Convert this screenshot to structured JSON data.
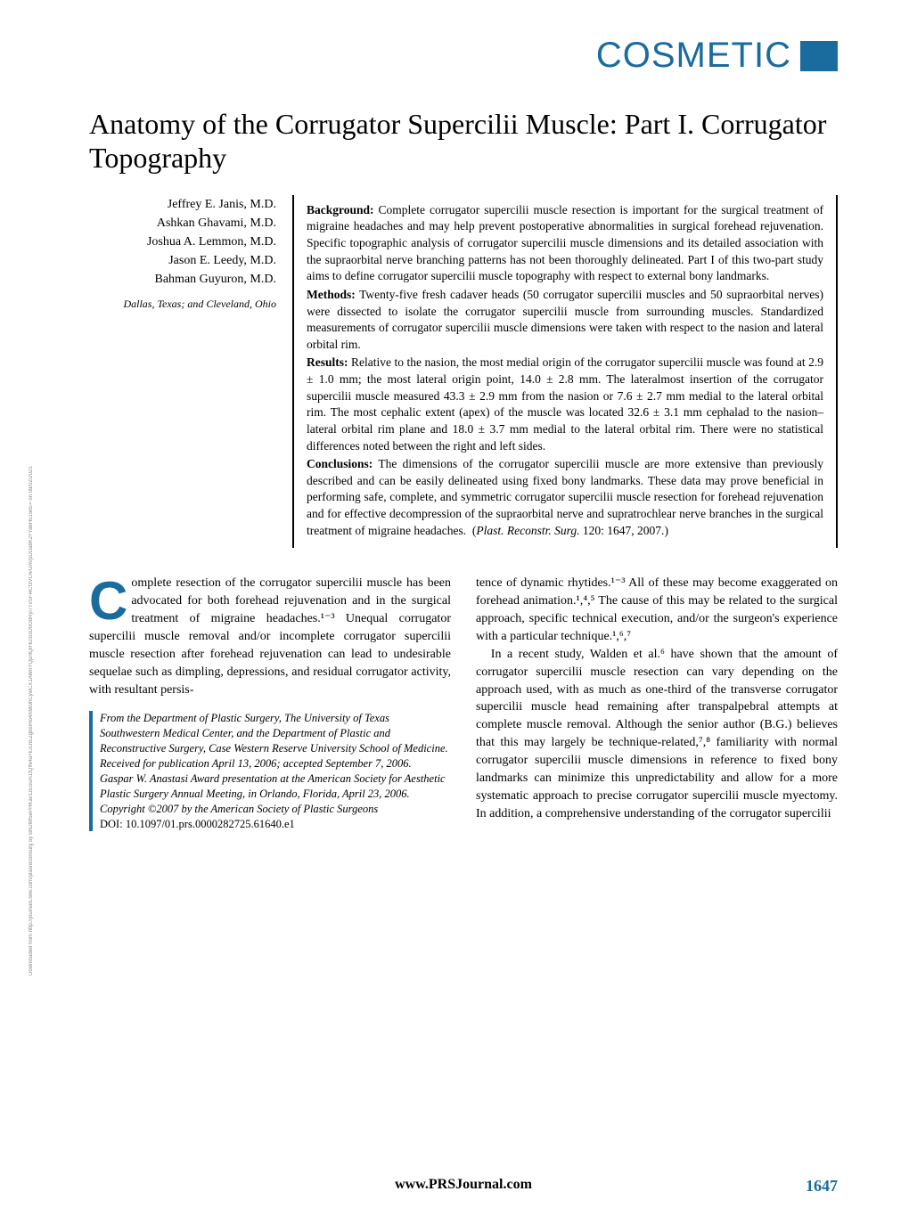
{
  "header": {
    "section_label": "COSMETIC",
    "label_color": "#1a6b9e"
  },
  "article": {
    "title": "Anatomy of the Corrugator Supercilii Muscle: Part I. Corrugator Topography",
    "authors": [
      "Jeffrey E. Janis, M.D.",
      "Ashkan Ghavami, M.D.",
      "Joshua A. Lemmon, M.D.",
      "Jason E. Leedy, M.D.",
      "Bahman Guyuron, M.D."
    ],
    "affiliation": "Dallas, Texas; and Cleveland, Ohio"
  },
  "abstract": {
    "background_label": "Background:",
    "background": "Complete corrugator supercilii muscle resection is important for the surgical treatment of migraine headaches and may help prevent postoperative abnormalities in surgical forehead rejuvenation. Specific topographic analysis of corrugator supercilii muscle dimensions and its detailed association with the supraorbital nerve branching patterns has not been thoroughly delineated. Part I of this two-part study aims to define corrugator supercilii muscle topography with respect to external bony landmarks.",
    "methods_label": "Methods:",
    "methods": "Twenty-five fresh cadaver heads (50 corrugator supercilii muscles and 50 supraorbital nerves) were dissected to isolate the corrugator supercilii muscle from surrounding muscles. Standardized measurements of corrugator supercilii muscle dimensions were taken with respect to the nasion and lateral orbital rim.",
    "results_label": "Results:",
    "results": "Relative to the nasion, the most medial origin of the corrugator supercilii muscle was found at 2.9 ± 1.0 mm; the most lateral origin point, 14.0 ± 2.8 mm. The lateralmost insertion of the corrugator supercilii muscle measured 43.3 ± 2.9 mm from the nasion or 7.6 ± 2.7 mm medial to the lateral orbital rim. The most cephalic extent (apex) of the muscle was located 32.6 ± 3.1 mm cephalad to the nasion–lateral orbital rim plane and 18.0 ± 3.7 mm medial to the lateral orbital rim. There were no statistical differences noted between the right and left sides.",
    "conclusions_label": "Conclusions:",
    "conclusions": "The dimensions of the corrugator supercilii muscle are more extensive than previously described and can be easily delineated using fixed bony landmarks. These data may prove beneficial in performing safe, complete, and symmetric corrugator supercilii muscle resection for forehead rejuvenation and for effective decompression of the supraorbital nerve and supratrochlear nerve branches in the surgical treatment of migraine headaches.",
    "citation_journal": "Plast. Reconstr. Surg.",
    "citation_details": "120: 1647, 2007."
  },
  "body": {
    "col1_p1_first": "C",
    "col1_p1_rest": "omplete resection of the corrugator supercilii muscle has been advocated for both forehead rejuvenation and in the surgical treatment of migraine headaches.¹⁻³ Unequal corrugator supercilii muscle removal and/or incomplete corrugator supercilii muscle resection after forehead rejuvenation can lead to undesirable sequelae such as dimpling, depressions, and residual corrugator activity, with resultant persis-",
    "col2_p1": "tence of dynamic rhytides.¹⁻³ All of these may become exaggerated on forehead animation.¹,⁴,⁵ The cause of this may be related to the surgical approach, specific technical execution, and/or the surgeon's experience with a particular technique.¹,⁶,⁷",
    "col2_p2": "In a recent study, Walden et al.⁶ have shown that the amount of corrugator supercilii muscle resection can vary depending on the approach used, with as much as one-third of the transverse corrugator supercilii muscle head remaining after transpalpebral attempts at complete muscle removal. Although the senior author (B.G.) believes that this may largely be technique-related,⁷,⁸ familiarity with normal corrugator supercilii muscle dimensions in reference to fixed bony landmarks can minimize this unpredictability and allow for a more systematic approach to precise corrugator supercilii muscle myectomy. In addition, a comprehensive understanding of the corrugator supercilii"
  },
  "footnotes": {
    "l1": "From the Department of Plastic Surgery, The University of Texas Southwestern Medical Center, and the Department of Plastic and Reconstructive Surgery, Case Western Reserve University School of Medicine.",
    "l2": "Received for publication April 13, 2006; accepted September 7, 2006.",
    "l3": "Gaspar W. Anastasi Award presentation at the American Society for Aesthetic Plastic Surgery Annual Meeting, in Orlando, Florida, April 23, 2006.",
    "l4": "Copyright ©2007 by the American Society of Plastic Surgeons",
    "doi": "DOI: 10.1097/01.prs.0000282725.61640.e1"
  },
  "footer": {
    "url": "www.PRSJournal.com",
    "page": "1647"
  },
  "watermark": "Downloaded from http://journals.lww.com/plasreconsurg by BhDMf5ePHKav1zEoum1tQfN4a+kJLhEZgbsIHo4XMi0hCywCX1AWnYQp/IlQrHD3i3D0OdRyi7TvSFl4Cf3VC4/OAVpDDa8K2+Ya6H515kE= on 08/02/2021"
}
